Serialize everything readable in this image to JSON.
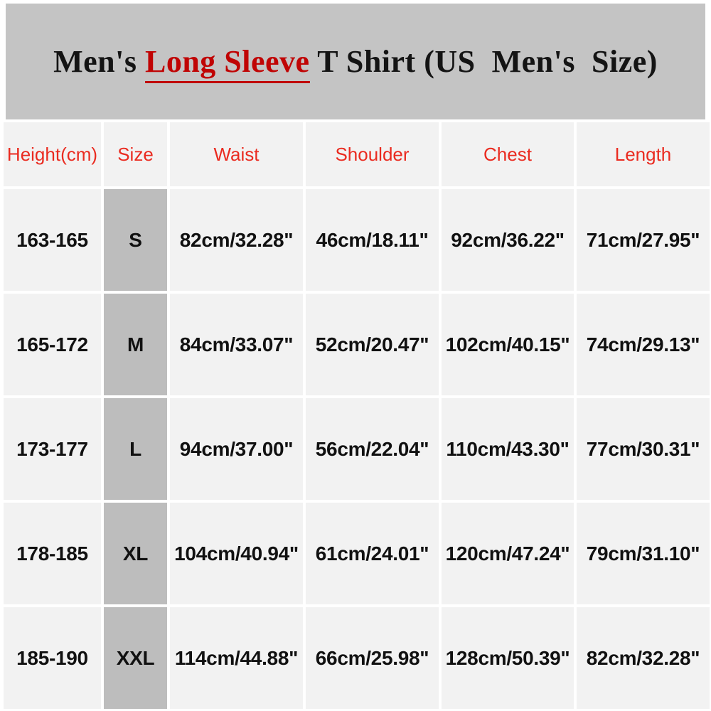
{
  "colors": {
    "page_bg": "#ffffff",
    "banner_bg": "#c4c4c4",
    "cell_bg": "#f2f2f2",
    "size_cell_bg": "#bdbdbd",
    "header_text": "#ea2b20",
    "data_text": "#111111",
    "title_text": "#141414",
    "highlight": "#c00404"
  },
  "banner": {
    "title_prefix": "Men's ",
    "title_highlight": "Long Sleeve",
    "title_suffix": " T Shirt (US  Men's  Size)"
  },
  "table": {
    "headers": [
      "Height(cm)",
      "Size",
      "Waist",
      "Shoulder",
      "Chest",
      "Length"
    ],
    "rows": [
      {
        "height": "163-165",
        "size": "S",
        "waist": "82cm/32.28\"",
        "shoulder": "46cm/18.11\"",
        "chest": "92cm/36.22\"",
        "length": "71cm/27.95\""
      },
      {
        "height": "165-172",
        "size": "M",
        "waist": "84cm/33.07\"",
        "shoulder": "52cm/20.47\"",
        "chest": "102cm/40.15\"",
        "length": "74cm/29.13\""
      },
      {
        "height": "173-177",
        "size": "L",
        "waist": "94cm/37.00\"",
        "shoulder": "56cm/22.04\"",
        "chest": "110cm/43.30\"",
        "length": "77cm/30.31\""
      },
      {
        "height": "178-185",
        "size": "XL",
        "waist": "104cm/40.94\"",
        "shoulder": "61cm/24.01\"",
        "chest": "120cm/47.24\"",
        "length": "79cm/31.10\""
      },
      {
        "height": "185-190",
        "size": "XXL",
        "waist": "114cm/44.88\"",
        "shoulder": "66cm/25.98\"",
        "chest": "128cm/50.39\"",
        "length": "82cm/32.28\""
      }
    ]
  },
  "chart_data": {
    "type": "table",
    "title": "Men's Long Sleeve T Shirt (US Men's Size)",
    "columns": [
      "Height(cm)",
      "Size",
      "Waist",
      "Shoulder",
      "Chest",
      "Length"
    ],
    "rows": [
      [
        "163-165",
        "S",
        "82cm/32.28\"",
        "46cm/18.11\"",
        "92cm/36.22\"",
        "71cm/27.95\""
      ],
      [
        "165-172",
        "M",
        "84cm/33.07\"",
        "52cm/20.47\"",
        "102cm/40.15\"",
        "74cm/29.13\""
      ],
      [
        "173-177",
        "L",
        "94cm/37.00\"",
        "56cm/22.04\"",
        "110cm/43.30\"",
        "77cm/30.31\""
      ],
      [
        "178-185",
        "XL",
        "104cm/40.94\"",
        "61cm/24.01\"",
        "120cm/47.24\"",
        "79cm/31.10\""
      ],
      [
        "185-190",
        "XXL",
        "114cm/44.88\"",
        "66cm/25.98\"",
        "128cm/50.39\"",
        "82cm/32.28\""
      ]
    ]
  }
}
